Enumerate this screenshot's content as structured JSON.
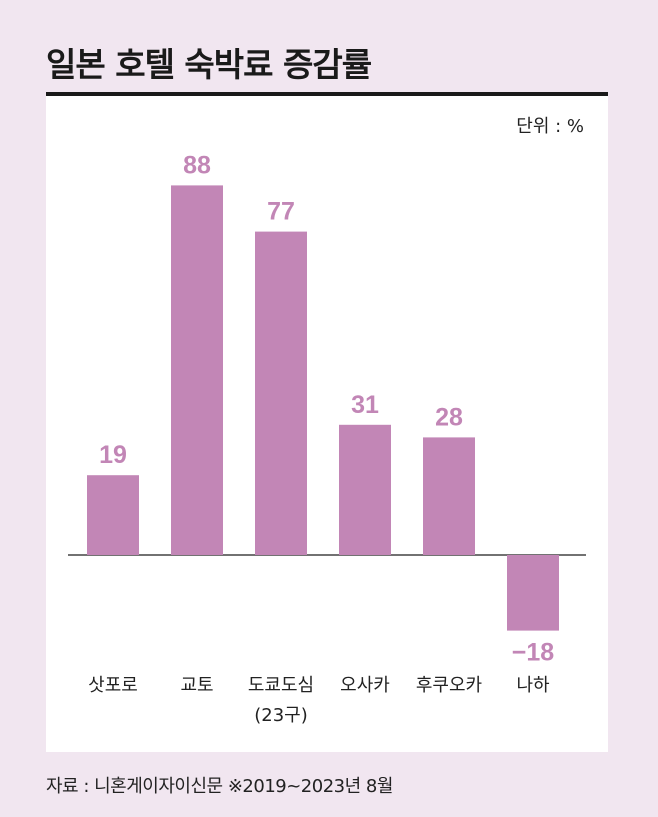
{
  "chart_data": {
    "type": "bar",
    "title": "일본 호텔 숙박료 증감률",
    "unit_label": "단위 : %",
    "categories": [
      "삿포로",
      "교토",
      "도쿄도심\n(23구)",
      "오사카",
      "후쿠오카",
      "나하"
    ],
    "values": [
      19,
      88,
      77,
      31,
      28,
      -18
    ],
    "value_labels": [
      "19",
      "88",
      "77",
      "31",
      "28",
      "−18"
    ],
    "bar_color": "#c286b6",
    "label_color": "#c286b6"
  },
  "source": "자료 : 니혼게이자이신문 ※2019~2023년 8월"
}
